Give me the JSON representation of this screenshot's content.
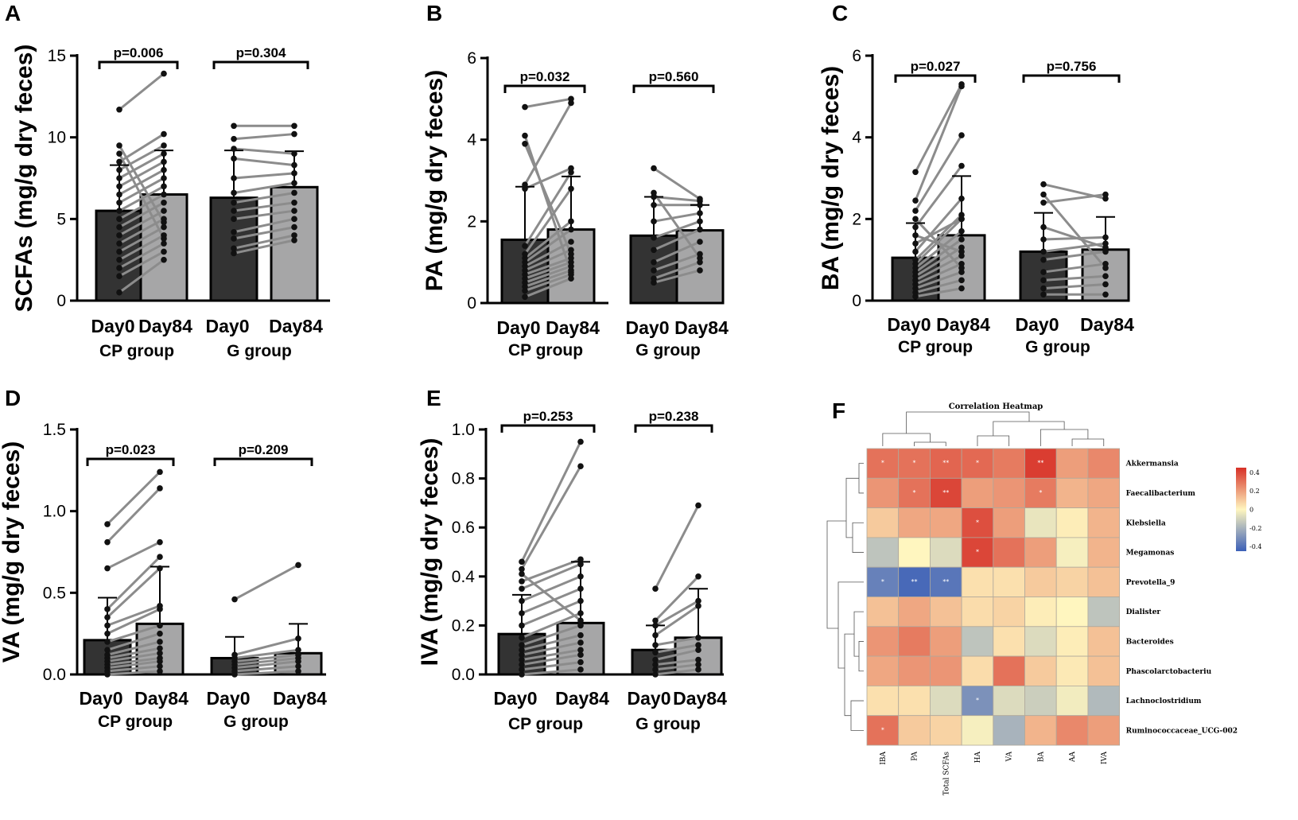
{
  "chart_data": [
    {
      "panel": "A",
      "type": "bar",
      "ylabel": "SCFAs (mg/g dry feces)",
      "ylim": [
        0,
        15
      ],
      "yticks": [
        0,
        5,
        10,
        15
      ],
      "groups": [
        {
          "name": "CP group",
          "categories": [
            "Day0",
            "Day84"
          ],
          "means": [
            5.5,
            6.5
          ],
          "sd": [
            2.8,
            2.7
          ],
          "p": "p=0.006",
          "day0_points": [
            0.5,
            1.5,
            2.0,
            2.5,
            3.0,
            3.5,
            4.0,
            4.5,
            5.0,
            5.5,
            6.0,
            6.5,
            7.0,
            7.5,
            8.0,
            8.5,
            9.0,
            9.5,
            11.7
          ],
          "day84_points": [
            2.5,
            3.0,
            3.5,
            4.0,
            4.5,
            5.0,
            5.5,
            6.0,
            6.5,
            7.0,
            7.5,
            8.0,
            8.5,
            9.0,
            9.5,
            10.2,
            3.8,
            4.8,
            13.9
          ]
        },
        {
          "name": "G group",
          "categories": [
            "Day0",
            "Day84"
          ],
          "means": [
            6.3,
            6.95
          ],
          "sd": [
            2.9,
            2.2
          ],
          "p": "p=0.304",
          "day0_points": [
            2.9,
            3.2,
            3.8,
            4.2,
            5.0,
            5.5,
            6.0,
            6.6,
            7.5,
            8.7,
            9.3,
            9.9,
            10.7
          ],
          "day84_points": [
            3.7,
            4.0,
            4.5,
            5.0,
            5.5,
            6.0,
            6.6,
            7.2,
            7.8,
            8.3,
            9.0,
            10.2,
            10.7
          ]
        }
      ]
    },
    {
      "panel": "B",
      "type": "bar",
      "ylabel": "PA (mg/g dry feces)",
      "ylim": [
        0,
        6
      ],
      "yticks": [
        0,
        2,
        4,
        6
      ],
      "groups": [
        {
          "name": "CP group",
          "categories": [
            "Day0",
            "Day84"
          ],
          "means": [
            1.55,
            1.8
          ],
          "sd": [
            1.3,
            1.3
          ],
          "p": "p=0.032",
          "day0_points": [
            0.15,
            0.3,
            0.4,
            0.5,
            0.6,
            0.7,
            0.8,
            0.9,
            1.0,
            1.1,
            1.2,
            1.4,
            2.8,
            2.9,
            3.9,
            4.1,
            4.8
          ],
          "day84_points": [
            0.6,
            0.7,
            0.8,
            0.9,
            1.0,
            1.1,
            1.3,
            1.5,
            1.8,
            2.0,
            2.8,
            3.2,
            3.3,
            4.9,
            1.2,
            0.75,
            5.0
          ]
        },
        {
          "name": "G group",
          "categories": [
            "Day0",
            "Day84"
          ],
          "means": [
            1.65,
            1.78
          ],
          "sd": [
            0.95,
            0.62
          ],
          "p": "p=0.560",
          "day0_points": [
            0.5,
            0.6,
            0.8,
            1.0,
            1.3,
            1.6,
            2.0,
            2.4,
            2.6,
            2.7,
            3.3
          ],
          "day84_points": [
            0.8,
            1.0,
            1.2,
            1.5,
            1.8,
            2.0,
            2.2,
            2.4,
            2.5,
            1.1,
            2.55
          ]
        }
      ]
    },
    {
      "panel": "C",
      "type": "bar",
      "ylabel": "BA (mg/g dry feces)",
      "ylim": [
        0,
        6
      ],
      "yticks": [
        0,
        2,
        4,
        6
      ],
      "groups": [
        {
          "name": "CP group",
          "categories": [
            "Day0",
            "Day84"
          ],
          "means": [
            1.05,
            1.6
          ],
          "sd": [
            0.85,
            1.45
          ],
          "p": "p=0.027",
          "day0_points": [
            0.1,
            0.2,
            0.3,
            0.4,
            0.5,
            0.6,
            0.7,
            0.8,
            0.9,
            1.0,
            1.2,
            1.4,
            1.6,
            1.8,
            2.0,
            2.2,
            2.45,
            3.15
          ],
          "day84_points": [
            0.3,
            0.5,
            0.7,
            0.9,
            1.1,
            1.3,
            1.5,
            1.7,
            2.0,
            2.1,
            2.5,
            2.0,
            1.2,
            3.3,
            0.8,
            4.05,
            5.25,
            5.3
          ]
        },
        {
          "name": "G group",
          "categories": [
            "Day0",
            "Day84"
          ],
          "means": [
            1.2,
            1.25
          ],
          "sd": [
            0.95,
            0.8
          ],
          "p": "p=0.756",
          "day0_points": [
            0.15,
            0.3,
            0.5,
            0.7,
            1.0,
            1.2,
            1.5,
            1.8,
            2.4,
            2.6,
            2.85
          ],
          "day84_points": [
            0.15,
            0.4,
            0.6,
            0.9,
            1.2,
            1.4,
            1.55,
            1.3,
            2.6,
            0.8,
            2.5
          ]
        }
      ]
    },
    {
      "panel": "D",
      "type": "bar",
      "ylabel": "VA (mg/g dry feces)",
      "ylim": [
        0,
        1.5
      ],
      "yticks": [
        0.0,
        0.5,
        1.0,
        1.5
      ],
      "ytick_labels": [
        "0.0",
        "0.5",
        "1.0",
        "1.5"
      ],
      "groups": [
        {
          "name": "CP group",
          "categories": [
            "Day0",
            "Day84"
          ],
          "means": [
            0.21,
            0.31
          ],
          "sd": [
            0.26,
            0.35
          ],
          "p": "p=0.023",
          "day0_points": [
            0.0,
            0.02,
            0.04,
            0.06,
            0.08,
            0.1,
            0.12,
            0.15,
            0.2,
            0.25,
            0.3,
            0.35,
            0.4,
            0.65,
            0.81,
            0.92
          ],
          "day84_points": [
            0.02,
            0.05,
            0.08,
            0.1,
            0.13,
            0.16,
            0.2,
            0.25,
            0.3,
            0.4,
            0.42,
            0.65,
            0.72,
            0.81,
            1.14,
            1.24
          ]
        },
        {
          "name": "G group",
          "categories": [
            "Day0",
            "Day84"
          ],
          "means": [
            0.1,
            0.13
          ],
          "sd": [
            0.13,
            0.18
          ],
          "p": "p=0.209",
          "day0_points": [
            0.0,
            0.02,
            0.04,
            0.06,
            0.08,
            0.1,
            0.12,
            0.46
          ],
          "day84_points": [
            0.02,
            0.05,
            0.08,
            0.1,
            0.12,
            0.15,
            0.22,
            0.67
          ]
        }
      ]
    },
    {
      "panel": "E",
      "type": "bar",
      "ylabel": "IVA (mg/g dry feces)",
      "ylim": [
        0,
        1.0
      ],
      "yticks": [
        0.0,
        0.2,
        0.4,
        0.6,
        0.8,
        1.0
      ],
      "ytick_labels": [
        "0.0",
        "0.2",
        "0.4",
        "0.6",
        "0.8",
        "1.0"
      ],
      "groups": [
        {
          "name": "CP group",
          "categories": [
            "Day0",
            "Day84"
          ],
          "means": [
            0.165,
            0.21
          ],
          "sd": [
            0.16,
            0.25
          ],
          "p": "p=0.253",
          "day0_points": [
            0.0,
            0.02,
            0.04,
            0.06,
            0.08,
            0.1,
            0.12,
            0.15,
            0.2,
            0.25,
            0.3,
            0.35,
            0.38,
            0.41,
            0.43,
            0.46
          ],
          "day84_points": [
            0.02,
            0.05,
            0.08,
            0.1,
            0.13,
            0.16,
            0.2,
            0.25,
            0.3,
            0.35,
            0.4,
            0.45,
            0.47,
            0.22,
            0.85,
            0.95
          ]
        },
        {
          "name": "G group",
          "categories": [
            "Day0",
            "Day84"
          ],
          "means": [
            0.1,
            0.15
          ],
          "sd": [
            0.1,
            0.2
          ],
          "p": "p=0.238",
          "day0_points": [
            0.0,
            0.02,
            0.04,
            0.06,
            0.09,
            0.12,
            0.16,
            0.2,
            0.22,
            0.35
          ],
          "day84_points": [
            0.02,
            0.04,
            0.06,
            0.1,
            0.12,
            0.15,
            0.28,
            0.3,
            0.4,
            0.69
          ]
        }
      ]
    },
    {
      "panel": "F",
      "type": "heatmap",
      "title": "Correlation Heatmap",
      "columns": [
        "IBA",
        "PA",
        "Total SCFAs",
        "HA",
        "VA",
        "BA",
        "AA",
        "IVA"
      ],
      "rows": [
        "Akkermansia",
        "Faecalibacterium",
        "Klebsiella",
        "Megamonas",
        "Prevotella_9",
        "Dialister",
        "Bacteroides",
        "Phascolarctobacteriu",
        "Lachnoclostridium",
        "Ruminococcaceae_UCG-002"
      ],
      "values": [
        [
          0.3,
          0.3,
          0.33,
          0.32,
          0.28,
          0.42,
          0.2,
          0.25
        ],
        [
          0.22,
          0.3,
          0.4,
          0.2,
          0.22,
          0.28,
          0.15,
          0.18
        ],
        [
          0.1,
          0.18,
          0.18,
          0.38,
          0.2,
          -0.05,
          0.02,
          0.15
        ],
        [
          -0.15,
          0.0,
          -0.08,
          0.4,
          0.3,
          0.2,
          -0.02,
          0.15
        ],
        [
          -0.35,
          -0.42,
          -0.38,
          0.05,
          0.05,
          0.1,
          0.08,
          0.12
        ],
        [
          0.12,
          0.18,
          0.12,
          0.06,
          0.08,
          0.02,
          0.0,
          -0.15
        ],
        [
          0.22,
          0.28,
          0.2,
          -0.15,
          0.05,
          -0.08,
          0.02,
          0.12
        ],
        [
          0.18,
          0.22,
          0.22,
          0.06,
          0.3,
          0.1,
          0.03,
          0.12
        ],
        [
          0.05,
          0.05,
          -0.08,
          -0.3,
          -0.08,
          -0.12,
          -0.03,
          -0.18
        ],
        [
          0.3,
          0.1,
          0.08,
          -0.02,
          -0.2,
          0.15,
          0.25,
          0.2
        ]
      ],
      "stars": [
        [
          "*",
          "*",
          "**",
          "*",
          "",
          "**",
          "",
          ""
        ],
        [
          "",
          "*",
          "**",
          "",
          "",
          "*",
          "",
          ""
        ],
        [
          "",
          "",
          "",
          "*",
          "",
          "",
          "",
          ""
        ],
        [
          "",
          "",
          "",
          "*",
          "",
          "",
          "",
          ""
        ],
        [
          "*",
          "**",
          "**",
          "",
          "",
          "",
          "",
          ""
        ],
        [
          "",
          "",
          "",
          "",
          "",
          "",
          "",
          ""
        ],
        [
          "",
          "",
          "",
          "",
          "",
          "",
          "",
          ""
        ],
        [
          "",
          "",
          "",
          "",
          "",
          "",
          "",
          ""
        ],
        [
          "",
          "",
          "",
          "*",
          "",
          "",
          "",
          ""
        ],
        [
          "*",
          "",
          "",
          "",
          "",
          "",
          "",
          ""
        ]
      ],
      "colorbar_ticks": [
        "0.4",
        "0.2",
        "0",
        "-0.2",
        "-0.4"
      ],
      "colorbar_values": [
        0.4,
        0.2,
        0,
        -0.2,
        -0.4
      ],
      "colors": {
        "high": "#d73027",
        "mid": "#fff6bf",
        "low": "#3b5fb8"
      }
    }
  ],
  "colors": {
    "day0_bar": "#333333",
    "day84_bar": "#a6a6a7",
    "line": "#8c8c8c",
    "dot": "#111111"
  }
}
